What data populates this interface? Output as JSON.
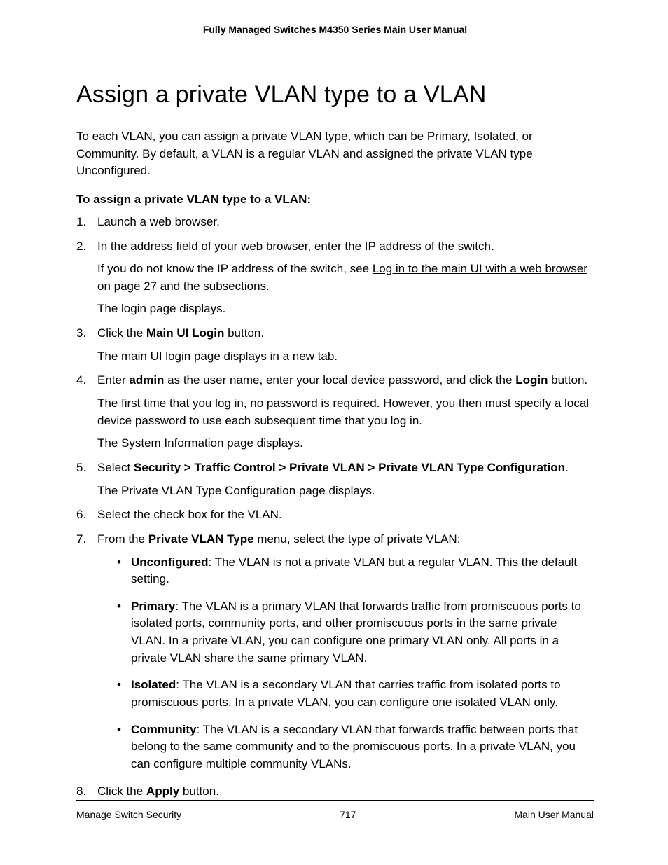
{
  "header": "Fully Managed Switches M4350 Series Main User Manual",
  "title": "Assign a private VLAN type to a VLAN",
  "intro": "To each VLAN, you can assign a private VLAN type, which can be Primary, Isolated, or Community. By default, a VLAN is a regular VLAN and assigned the private VLAN type Unconfigured.",
  "subheading": "To assign a private VLAN type to a VLAN:",
  "step1": "Launch a web browser.",
  "step2_a": "In the address field of your web browser, enter the IP address of the switch.",
  "step2_b_pre": "If you do not know the IP address of the switch, see ",
  "step2_b_link": "Log in to the main UI with a web browser",
  "step2_b_post": " on page 27 and the subsections.",
  "step2_c": "The login page displays.",
  "step3_a_pre": "Click the ",
  "step3_a_bold": "Main UI Login",
  "step3_a_post": " button.",
  "step3_b": "The main UI login page displays in a new tab.",
  "step4_a_pre": "Enter ",
  "step4_a_b1": "admin",
  "step4_a_mid": " as the user name, enter your local device password, and click the ",
  "step4_a_b2": "Login",
  "step4_a_post": " button.",
  "step4_b": "The first time that you log in, no password is required. However, you then must specify a local device password to use each subsequent time that you log in.",
  "step4_c": "The System Information page displays.",
  "step5_a_pre": "Select ",
  "step5_a_bold": "Security > Traffic Control > Private VLAN > Private VLAN Type Configuration",
  "step5_a_post": ".",
  "step5_b": "The Private VLAN Type Configuration page displays.",
  "step6": "Select the check box for the VLAN.",
  "step7_a_pre": "From the ",
  "step7_a_bold": "Private VLAN Type",
  "step7_a_post": " menu, select the type of private VLAN:",
  "bullet1_b": "Unconfigured",
  "bullet1_t": ": The VLAN is not a private VLAN but a regular VLAN. This the default setting.",
  "bullet2_b": "Primary",
  "bullet2_t": ": The VLAN is a primary VLAN that forwards traffic from promiscuous ports to isolated ports, community ports, and other promiscuous ports in the same private VLAN. In a private VLAN, you can configure one primary VLAN only. All ports in a private VLAN share the same primary VLAN.",
  "bullet3_b": "Isolated",
  "bullet3_t": ": The VLAN is a secondary VLAN that carries traffic from isolated ports to promiscuous ports. In a private VLAN, you can configure one isolated VLAN only.",
  "bullet4_b": "Community",
  "bullet4_t": ": The VLAN is a secondary VLAN that forwards traffic between ports that belong to the same community and to the promiscuous ports. In a private VLAN, you can configure multiple community VLANs.",
  "step8_pre": "Click the ",
  "step8_bold": "Apply",
  "step8_post": " button.",
  "footer_left": "Manage Switch Security",
  "footer_center": "717",
  "footer_right": "Main User Manual"
}
